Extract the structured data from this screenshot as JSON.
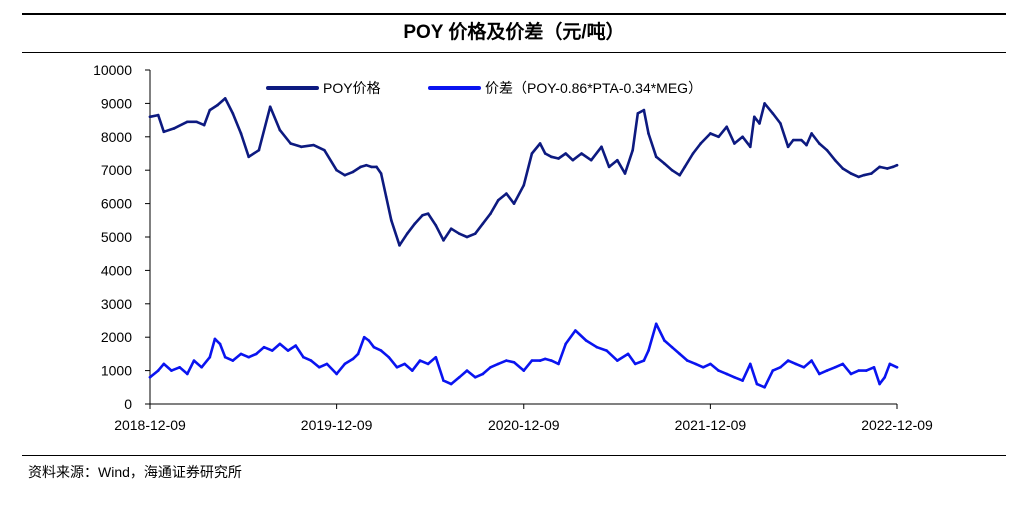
{
  "title": "POY 价格及价差（元/吨）",
  "source": "资料来源：Wind，海通证券研究所",
  "chart_data": {
    "type": "line",
    "title": "POY 价格及价差（元/吨）",
    "ylim": [
      0,
      10000
    ],
    "y_ticks": [
      0,
      1000,
      2000,
      3000,
      4000,
      5000,
      6000,
      7000,
      8000,
      9000,
      10000
    ],
    "x_ticks": [
      "2018-12-09",
      "2019-12-09",
      "2020-12-09",
      "2021-12-09",
      "2022-12-09"
    ],
    "xlim": [
      "2018-12-09",
      "2022-12-09"
    ],
    "grid": false,
    "legend_position": "top",
    "series": [
      {
        "name": "POY价格",
        "color": "#0d1a80",
        "x": [
          "2018-12-09",
          "2018-12-25",
          "2019-01-05",
          "2019-01-25",
          "2019-02-20",
          "2019-03-10",
          "2019-03-25",
          "2019-04-05",
          "2019-04-20",
          "2019-05-05",
          "2019-05-20",
          "2019-06-05",
          "2019-06-20",
          "2019-07-10",
          "2019-08-01",
          "2019-08-20",
          "2019-09-10",
          "2019-10-01",
          "2019-10-25",
          "2019-11-15",
          "2019-12-09",
          "2019-12-25",
          "2020-01-10",
          "2020-01-25",
          "2020-02-05",
          "2020-02-15",
          "2020-02-25",
          "2020-03-05",
          "2020-03-15",
          "2020-03-25",
          "2020-04-10",
          "2020-04-25",
          "2020-05-10",
          "2020-05-25",
          "2020-06-05",
          "2020-06-20",
          "2020-07-05",
          "2020-07-20",
          "2020-08-05",
          "2020-08-20",
          "2020-09-05",
          "2020-09-20",
          "2020-10-05",
          "2020-10-20",
          "2020-11-05",
          "2020-11-20",
          "2020-12-09",
          "2020-12-25",
          "2021-01-10",
          "2021-01-20",
          "2021-02-01",
          "2021-02-15",
          "2021-03-01",
          "2021-03-15",
          "2021-04-01",
          "2021-04-20",
          "2021-05-10",
          "2021-05-25",
          "2021-06-10",
          "2021-06-25",
          "2021-07-10",
          "2021-07-20",
          "2021-08-01",
          "2021-08-10",
          "2021-08-25",
          "2021-09-10",
          "2021-09-25",
          "2021-10-10",
          "2021-10-20",
          "2021-11-05",
          "2021-11-20",
          "2021-12-09",
          "2021-12-25",
          "2022-01-10",
          "2022-01-25",
          "2022-02-10",
          "2022-02-25",
          "2022-03-05",
          "2022-03-15",
          "2022-03-25",
          "2022-04-10",
          "2022-04-25",
          "2022-05-10",
          "2022-05-20",
          "2022-06-05",
          "2022-06-15",
          "2022-06-25",
          "2022-07-10",
          "2022-07-25",
          "2022-08-10",
          "2022-08-25",
          "2022-09-10",
          "2022-09-25",
          "2022-10-05",
          "2022-10-20",
          "2022-11-05",
          "2022-11-20",
          "2022-12-01",
          "2022-12-09"
        ],
        "values": [
          8600,
          8650,
          8150,
          8250,
          8450,
          8450,
          8350,
          8800,
          8950,
          9150,
          8700,
          8100,
          7400,
          7600,
          8900,
          8200,
          7800,
          7700,
          7750,
          7600,
          7000,
          6850,
          6950,
          7100,
          7150,
          7100,
          7100,
          6900,
          6200,
          5500,
          4750,
          5100,
          5400,
          5650,
          5700,
          5350,
          4900,
          5250,
          5100,
          5000,
          5100,
          5400,
          5700,
          6100,
          6300,
          6000,
          6550,
          7500,
          7800,
          7500,
          7400,
          7350,
          7500,
          7300,
          7500,
          7300,
          7700,
          7100,
          7300,
          6900,
          7600,
          8700,
          8800,
          8100,
          7400,
          7200,
          7000,
          6850,
          7100,
          7500,
          7800,
          8100,
          8000,
          8300,
          7800,
          8000,
          7700,
          8600,
          8400,
          9000,
          8700,
          8400,
          7700,
          7900,
          7900,
          7750,
          8100,
          7800,
          7600,
          7300,
          7050,
          6900,
          6800,
          6850,
          6900,
          7100,
          7050,
          7100,
          7150
        ]
      },
      {
        "name": "价差（POY-0.86*PTA-0.34*MEG）",
        "color": "#0a14f0",
        "x": [
          "2018-12-09",
          "2018-12-25",
          "2019-01-05",
          "2019-01-20",
          "2019-02-05",
          "2019-02-20",
          "2019-03-05",
          "2019-03-20",
          "2019-04-05",
          "2019-04-15",
          "2019-04-25",
          "2019-05-05",
          "2019-05-20",
          "2019-06-05",
          "2019-06-20",
          "2019-07-05",
          "2019-07-20",
          "2019-08-05",
          "2019-08-20",
          "2019-09-05",
          "2019-09-20",
          "2019-10-05",
          "2019-10-20",
          "2019-11-05",
          "2019-11-20",
          "2019-12-09",
          "2019-12-25",
          "2020-01-10",
          "2020-01-20",
          "2020-02-01",
          "2020-02-10",
          "2020-02-20",
          "2020-03-05",
          "2020-03-20",
          "2020-04-05",
          "2020-04-20",
          "2020-05-05",
          "2020-05-20",
          "2020-06-05",
          "2020-06-20",
          "2020-07-05",
          "2020-07-20",
          "2020-08-05",
          "2020-08-20",
          "2020-09-05",
          "2020-09-20",
          "2020-10-05",
          "2020-10-20",
          "2020-11-05",
          "2020-11-20",
          "2020-12-09",
          "2020-12-25",
          "2021-01-10",
          "2021-01-20",
          "2021-02-01",
          "2021-02-15",
          "2021-03-01",
          "2021-03-20",
          "2021-04-10",
          "2021-05-01",
          "2021-05-20",
          "2021-06-10",
          "2021-07-01",
          "2021-07-15",
          "2021-08-01",
          "2021-08-10",
          "2021-08-25",
          "2021-09-10",
          "2021-09-25",
          "2021-10-10",
          "2021-10-25",
          "2021-11-10",
          "2021-11-25",
          "2021-12-09",
          "2021-12-25",
          "2022-01-10",
          "2022-01-25",
          "2022-02-10",
          "2022-02-25",
          "2022-03-10",
          "2022-03-25",
          "2022-04-10",
          "2022-04-25",
          "2022-05-10",
          "2022-05-25",
          "2022-06-10",
          "2022-06-25",
          "2022-07-10",
          "2022-07-25",
          "2022-08-10",
          "2022-08-25",
          "2022-09-10",
          "2022-09-25",
          "2022-10-10",
          "2022-10-25",
          "2022-11-05",
          "2022-11-15",
          "2022-11-25",
          "2022-12-09"
        ],
        "values": [
          800,
          1000,
          1200,
          1000,
          1100,
          900,
          1300,
          1100,
          1400,
          1950,
          1800,
          1400,
          1300,
          1500,
          1400,
          1500,
          1700,
          1600,
          1800,
          1600,
          1750,
          1400,
          1300,
          1100,
          1200,
          900,
          1200,
          1350,
          1500,
          2000,
          1900,
          1700,
          1600,
          1400,
          1100,
          1200,
          1000,
          1300,
          1200,
          1400,
          700,
          600,
          800,
          1000,
          800,
          900,
          1100,
          1200,
          1300,
          1250,
          1000,
          1300,
          1300,
          1350,
          1300,
          1200,
          1800,
          2200,
          1900,
          1700,
          1600,
          1300,
          1500,
          1200,
          1300,
          1600,
          2400,
          1900,
          1700,
          1500,
          1300,
          1200,
          1100,
          1200,
          1000,
          900,
          800,
          700,
          1200,
          600,
          500,
          1000,
          1100,
          1300,
          1200,
          1100,
          1300,
          900,
          1000,
          1100,
          1200,
          900,
          1000,
          1000,
          1100,
          600,
          800,
          1200,
          1100
        ]
      }
    ]
  }
}
